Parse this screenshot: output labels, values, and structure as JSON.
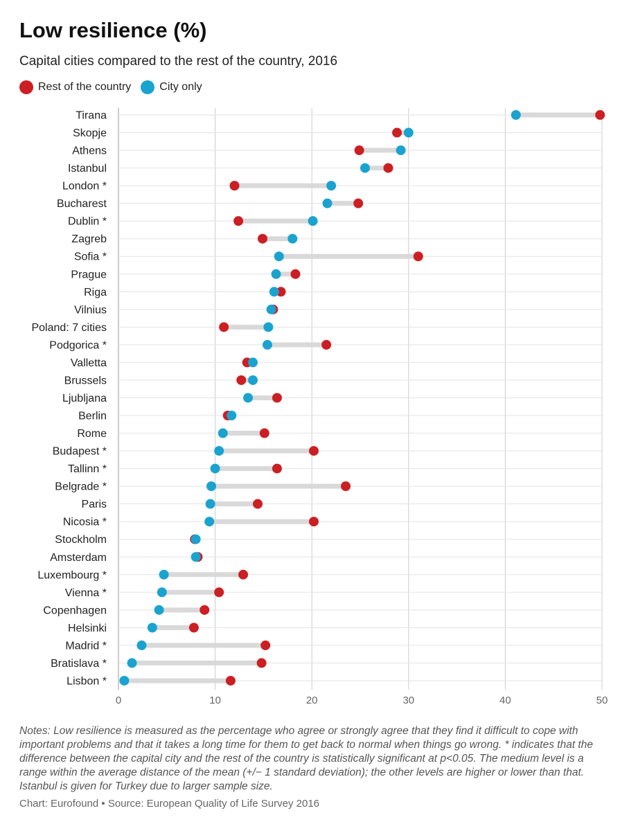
{
  "chart_data": {
    "type": "dumbbell",
    "title": "Low resilience (%)",
    "subtitle": "Capital cities compared to the rest of the country, 2016",
    "series": [
      {
        "name": "Rest of the country",
        "color": "#cc1f24"
      },
      {
        "name": "City only",
        "color": "#1ba3cf"
      }
    ],
    "xlim": [
      0,
      50
    ],
    "xticks": [
      0,
      10,
      20,
      30,
      40,
      50
    ],
    "grid": true,
    "legend_position": "top-left",
    "categories": [
      "Tirana",
      "Skopje",
      "Athens",
      "Istanbul",
      "London *",
      "Bucharest",
      "Dublin *",
      "Zagreb",
      "Sofia *",
      "Prague",
      "Riga",
      "Vilnius",
      "Poland: 7 cities",
      "Podgorica *",
      "Valletta",
      "Brussels",
      "Ljubljana",
      "Berlin",
      "Rome",
      "Budapest *",
      "Tallinn *",
      "Belgrade *",
      "Paris",
      "Nicosia *",
      "Stockholm",
      "Amsterdam",
      "Luxembourg *",
      "Vienna *",
      "Copenhagen",
      "Helsinki",
      "Madrid *",
      "Bratislava *",
      "Lisbon *"
    ],
    "rest_of_country": [
      49.8,
      28.8,
      24.9,
      27.9,
      12.0,
      24.8,
      12.4,
      14.9,
      31.0,
      18.3,
      16.8,
      16.0,
      10.9,
      21.5,
      13.3,
      12.7,
      16.4,
      11.3,
      15.1,
      20.2,
      16.4,
      23.5,
      14.4,
      20.2,
      7.9,
      8.2,
      12.9,
      10.4,
      8.9,
      7.8,
      15.2,
      14.8,
      11.6
    ],
    "city_only": [
      41.1,
      30.0,
      29.2,
      25.5,
      22.0,
      21.6,
      20.1,
      18.0,
      16.6,
      16.3,
      16.1,
      15.8,
      15.5,
      15.4,
      13.9,
      13.9,
      13.4,
      11.7,
      10.8,
      10.4,
      10.0,
      9.6,
      9.5,
      9.4,
      8.0,
      8.0,
      4.7,
      4.5,
      4.2,
      3.5,
      2.4,
      1.4,
      0.6
    ]
  },
  "notes": "Notes: Low resilience is measured as the percentage who agree or strongly agree that they find it difficult to cope with important problems and that it takes a long time for them to get back to normal when things go wrong. * indicates that the difference between the capital city and the rest of the country is statistically significant at p<0.05. The medium level is a range within the average distance of the mean (+/− 1 standard deviation); the other levels are higher or lower than that. Istanbul is given for Turkey due to larger sample size.",
  "credit": "Chart: Eurofound • Source: European Quality of Life Survey 2016",
  "colors": {
    "rest": "#cc1f24",
    "city": "#1ba3cf",
    "connector": "#d9d9d9",
    "grid": "#cccccc"
  }
}
